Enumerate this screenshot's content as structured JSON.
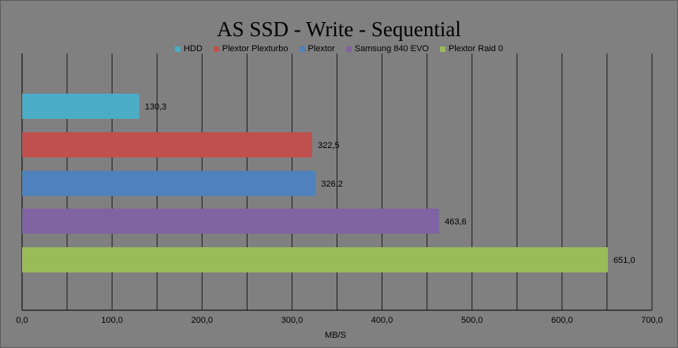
{
  "chart_data": {
    "type": "bar",
    "orientation": "horizontal",
    "title": "AS SSD - Write - Sequential",
    "xlabel": "MB/S",
    "ylabel": "",
    "xlim": [
      0,
      700
    ],
    "x_ticks": [
      0,
      50,
      100,
      150,
      200,
      250,
      300,
      350,
      400,
      450,
      500,
      550,
      600,
      650,
      700
    ],
    "x_tick_labels": [
      "0,0",
      "100,0",
      "200,0",
      "300,0",
      "400,0",
      "500,0",
      "600,0",
      "700,0"
    ],
    "grid": true,
    "legend_position": "top",
    "series": [
      {
        "name": "HDD",
        "value": 130.3,
        "label": "130,3",
        "color": "#4bacc6"
      },
      {
        "name": "Plextor Plexturbo",
        "value": 322.5,
        "label": "322,5",
        "color": "#c0504d"
      },
      {
        "name": "Plextor",
        "value": 326.2,
        "label": "326,2",
        "color": "#4f81bd"
      },
      {
        "name": "Samsung 840 EVO",
        "value": 463.6,
        "label": "463,6",
        "color": "#8064a2"
      },
      {
        "name": "Plextor Raid 0",
        "value": 651.0,
        "label": "651,0",
        "color": "#9bbb59"
      }
    ]
  }
}
